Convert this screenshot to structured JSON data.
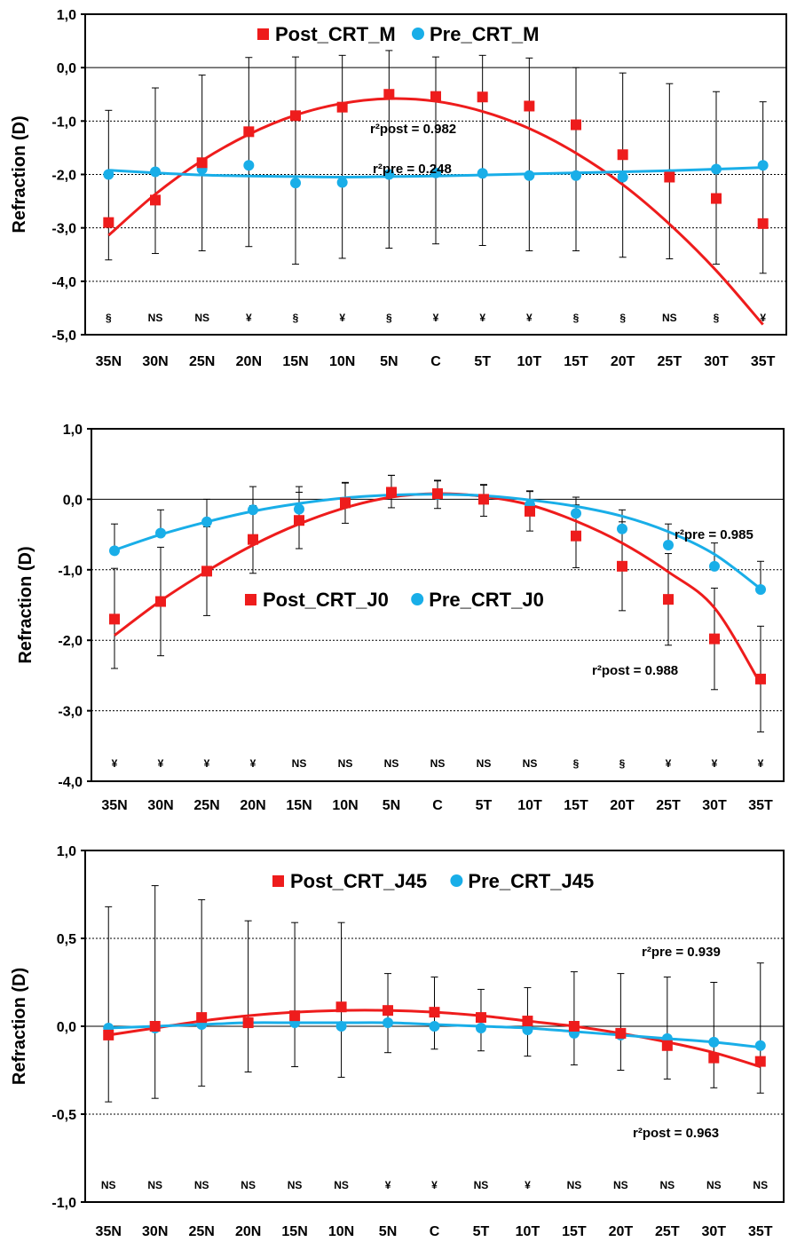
{
  "chart_data": [
    {
      "type": "line",
      "ylabel": "Refraction (D)",
      "ylim": [
        -5.0,
        1.0
      ],
      "yticks": [
        "1,0",
        "0,0",
        "-1,0",
        "-2,0",
        "-3,0",
        "-4,0",
        "-5,0"
      ],
      "categories": [
        "35N",
        "30N",
        "25N",
        "20N",
        "15N",
        "10N",
        "5N",
        "C",
        "5T",
        "10T",
        "15T",
        "20T",
        "25T",
        "30T",
        "35T"
      ],
      "series": [
        {
          "name": "Post_CRT_M",
          "color": "#ee1c1c",
          "marker": "square",
          "values": [
            -2.9,
            -2.48,
            -1.78,
            -1.2,
            -0.9,
            -0.74,
            -0.5,
            -0.54,
            -0.55,
            -0.72,
            -1.07,
            -1.63,
            -2.05,
            -2.45,
            -2.92
          ],
          "err_low": [
            -3.6,
            -3.48,
            -3.43,
            -3.35,
            -3.68,
            -3.57,
            -3.38,
            -3.3,
            -3.33,
            -3.43,
            -3.43,
            -3.55,
            -3.58,
            -3.68,
            -3.85
          ],
          "err_high": [
            -0.8,
            -0.38,
            -0.14,
            0.19,
            0.2,
            0.23,
            0.32,
            0.2,
            0.23,
            0.18,
            0.0,
            -0.1,
            -0.3,
            -0.45,
            -0.64
          ],
          "fit": [
            -3.14,
            -2.37,
            -1.74,
            -1.25,
            -0.89,
            -0.67,
            -0.58,
            -0.63,
            -0.82,
            -1.14,
            -1.6,
            -2.19,
            -2.93,
            -3.8,
            -4.81
          ]
        },
        {
          "name": "Pre_CRT_M",
          "color": "#19aee8",
          "marker": "circle",
          "values": [
            -2.0,
            -1.95,
            -1.9,
            -1.83,
            -2.16,
            -2.15,
            -2.0,
            -1.97,
            -1.98,
            -2.02,
            -2.02,
            -2.05,
            -2.0,
            -1.9,
            -1.83
          ],
          "fit": [
            -1.92,
            -1.97,
            -2.01,
            -2.03,
            -2.04,
            -2.05,
            -2.04,
            -2.03,
            -2.01,
            -1.99,
            -1.97,
            -1.95,
            -1.93,
            -1.9,
            -1.87
          ]
        }
      ],
      "annotations": [
        "r²post = 0.982",
        "r²pre = 0.248"
      ],
      "significance": [
        "§",
        "NS",
        "NS",
        "¥",
        "§",
        "¥",
        "§",
        "¥",
        "¥",
        "¥",
        "§",
        "§",
        "NS",
        "§",
        "¥"
      ],
      "legend": "top"
    },
    {
      "type": "line",
      "ylabel": "Refraction (D)",
      "ylim": [
        -4.0,
        1.0
      ],
      "yticks": [
        "1,0",
        "0,0",
        "-1,0",
        "-2,0",
        "-3,0",
        "-4,0"
      ],
      "categories": [
        "35N",
        "30N",
        "25N",
        "20N",
        "15N",
        "10N",
        "5N",
        "C",
        "5T",
        "10T",
        "15T",
        "20T",
        "25T",
        "30T",
        "35T"
      ],
      "series": [
        {
          "name": "Post_CRT_J0",
          "color": "#ee1c1c",
          "marker": "square",
          "values": [
            -1.7,
            -1.45,
            -1.02,
            -0.57,
            -0.3,
            -0.05,
            0.1,
            0.08,
            0.0,
            -0.17,
            -0.52,
            -0.95,
            -1.42,
            -1.98,
            -2.55
          ],
          "err_low": [
            -2.4,
            -2.22,
            -1.65,
            -1.05,
            -0.7,
            -0.34,
            -0.12,
            -0.13,
            -0.24,
            -0.45,
            -0.97,
            -1.58,
            -2.07,
            -2.7,
            -3.3
          ],
          "err_high": [
            -0.98,
            -0.68,
            -0.39,
            -0.09,
            0.1,
            0.24,
            0.34,
            0.27,
            0.21,
            0.11,
            -0.08,
            -0.32,
            -0.77,
            -1.26,
            -1.8
          ],
          "fit": [
            -1.93,
            -1.44,
            -1.02,
            -0.65,
            -0.35,
            -0.12,
            0.03,
            0.08,
            0.04,
            -0.08,
            -0.31,
            -0.62,
            -1.03,
            -1.54,
            -2.62
          ]
        },
        {
          "name": "Pre_CRT_J0",
          "color": "#19aee8",
          "marker": "circle",
          "values": [
            -0.73,
            -0.48,
            -0.32,
            -0.15,
            -0.14,
            -0.05,
            0.1,
            0.07,
            0.0,
            -0.08,
            -0.2,
            -0.42,
            -0.65,
            -0.95,
            -1.28
          ],
          "err_low": [
            -0.73,
            -0.48,
            -0.32,
            -0.15,
            -0.14,
            -0.05,
            0.1,
            0.07,
            0.0,
            -0.08,
            -0.2,
            -0.42,
            -0.65,
            -0.95,
            -1.28
          ],
          "err_high": [
            -0.35,
            -0.15,
            0.0,
            0.18,
            0.18,
            0.23,
            0.34,
            0.26,
            0.2,
            0.12,
            0.03,
            -0.15,
            -0.35,
            -0.62,
            -0.88
          ],
          "fit": [
            -0.72,
            -0.5,
            -0.32,
            -0.17,
            -0.06,
            0.02,
            0.06,
            0.07,
            0.05,
            -0.01,
            -0.1,
            -0.24,
            -0.46,
            -0.78,
            -1.27
          ]
        }
      ],
      "annotations": [
        "r²pre = 0.985",
        "r²post = 0.988"
      ],
      "significance": [
        "¥",
        "¥",
        "¥",
        "¥",
        "NS",
        "NS",
        "NS",
        "NS",
        "NS",
        "NS",
        "§",
        "§",
        "¥",
        "¥",
        "¥"
      ],
      "legend": "center"
    },
    {
      "type": "line",
      "ylabel": "Refraction (D)",
      "ylim": [
        -1.0,
        1.0
      ],
      "yticks": [
        "1,0",
        "0,5",
        "0,0",
        "-0,5",
        "-1,0"
      ],
      "categories": [
        "35N",
        "30N",
        "25N",
        "20N",
        "15N",
        "10N",
        "5N",
        "C",
        "5T",
        "10T",
        "15T",
        "20T",
        "25T",
        "30T",
        "35T"
      ],
      "series": [
        {
          "name": "Post_CRT_J45",
          "color": "#ee1c1c",
          "marker": "square",
          "values": [
            -0.05,
            0.0,
            0.05,
            0.02,
            0.06,
            0.11,
            0.09,
            0.08,
            0.05,
            0.03,
            0.0,
            -0.04,
            -0.11,
            -0.18,
            -0.2
          ],
          "fit": [
            -0.05,
            -0.01,
            0.03,
            0.06,
            0.08,
            0.09,
            0.09,
            0.08,
            0.06,
            0.03,
            0.0,
            -0.04,
            -0.09,
            -0.15,
            -0.23
          ]
        },
        {
          "name": "Pre_CRT_J45",
          "color": "#19aee8",
          "marker": "circle",
          "values": [
            -0.01,
            -0.01,
            0.01,
            0.02,
            0.02,
            0.0,
            0.02,
            0.0,
            -0.01,
            -0.02,
            -0.04,
            -0.05,
            -0.07,
            -0.09,
            -0.11
          ],
          "err_low": [
            -0.43,
            -0.41,
            -0.34,
            -0.26,
            -0.23,
            -0.29,
            -0.15,
            -0.13,
            -0.14,
            -0.17,
            -0.22,
            -0.25,
            -0.3,
            -0.35,
            -0.38
          ],
          "err_high": [
            0.68,
            0.8,
            0.72,
            0.6,
            0.59,
            0.59,
            0.3,
            0.28,
            0.21,
            0.22,
            0.31,
            0.3,
            0.28,
            0.25,
            0.36
          ],
          "fit": [
            -0.01,
            0.0,
            0.01,
            0.02,
            0.02,
            0.02,
            0.02,
            0.01,
            0.0,
            -0.01,
            -0.03,
            -0.05,
            -0.07,
            -0.09,
            -0.12
          ]
        }
      ],
      "annotations": [
        "r²pre = 0.939",
        "r²post = 0.963"
      ],
      "significance": [
        "NS",
        "NS",
        "NS",
        "NS",
        "NS",
        "NS",
        "¥",
        "¥",
        "NS",
        "¥",
        "NS",
        "NS",
        "NS",
        "NS",
        "NS"
      ],
      "legend": "top"
    }
  ]
}
